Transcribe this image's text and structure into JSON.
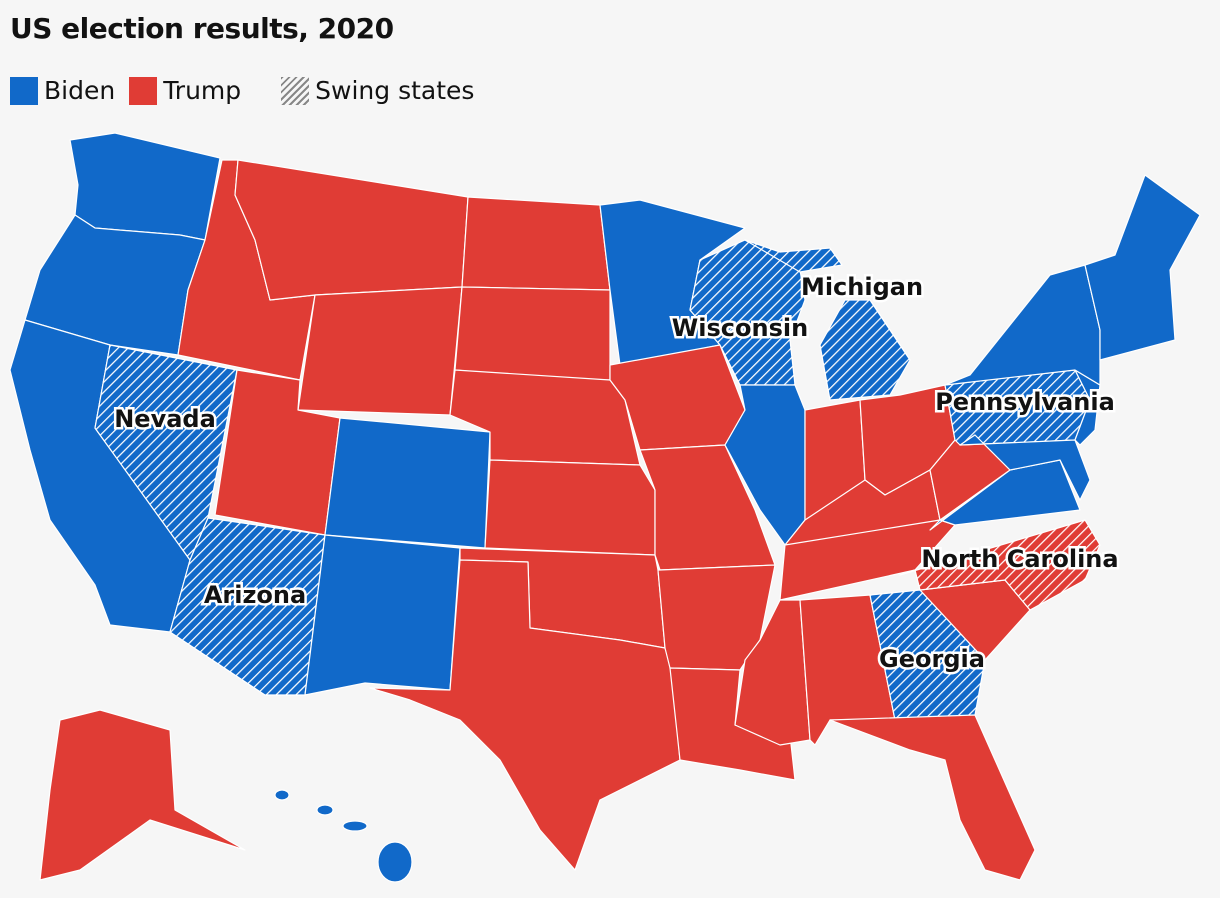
{
  "header": {
    "title": "US election results, 2020"
  },
  "legend": [
    {
      "label": "Biden",
      "color": "#1169c9"
    },
    {
      "label": "Trump",
      "color": "#e03c35"
    },
    {
      "label": "Swing states"
    }
  ],
  "map": {
    "labels": [
      "Nevada",
      "Arizona",
      "Wisconsin",
      "Michigan",
      "Pennsylvania",
      "North Carolina",
      "Georgia"
    ]
  }
}
